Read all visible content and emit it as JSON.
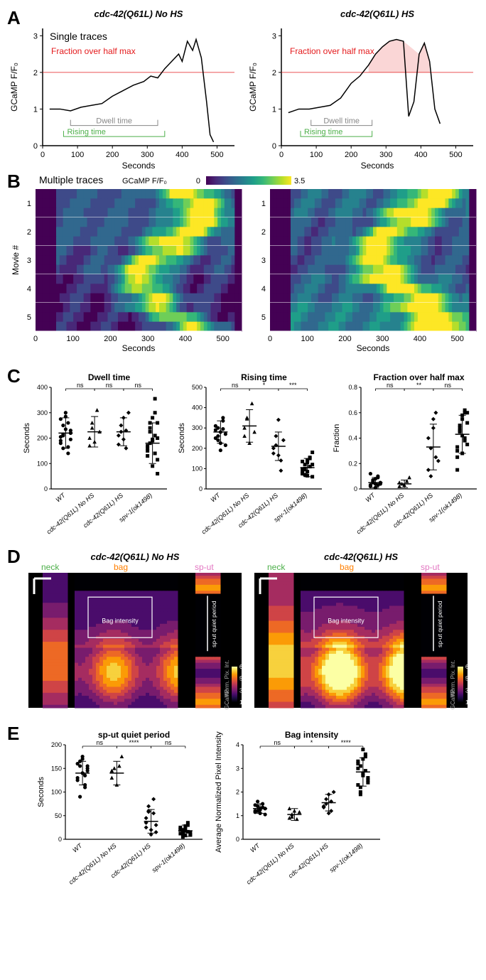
{
  "panelA": {
    "label": "A",
    "left_title": "cdc-42(Q61L) No HS",
    "right_title": "cdc-42(Q61L) HS",
    "subtitle": "Single traces",
    "ylabel": "GCaMP F/F₀",
    "xlabel": "Seconds",
    "yticks": [
      0,
      1,
      2,
      3
    ],
    "xticks_left": [
      0,
      100,
      200,
      300,
      400,
      500
    ],
    "xticks_right": [
      0,
      100,
      200,
      300,
      400,
      500
    ],
    "red_label": "Fraction over half max",
    "red_color": "#e41a1c",
    "gray_label": "Dwell time",
    "gray_color": "#888888",
    "green_label": "Rising time",
    "green_color": "#4daf4a",
    "half_max_y": 2.0,
    "left_trace": [
      [
        20,
        1.0
      ],
      [
        50,
        1.0
      ],
      [
        80,
        0.95
      ],
      [
        110,
        1.05
      ],
      [
        140,
        1.1
      ],
      [
        170,
        1.15
      ],
      [
        200,
        1.35
      ],
      [
        230,
        1.5
      ],
      [
        260,
        1.65
      ],
      [
        290,
        1.75
      ],
      [
        310,
        1.9
      ],
      [
        330,
        1.85
      ],
      [
        350,
        2.1
      ],
      [
        370,
        2.3
      ],
      [
        390,
        2.5
      ],
      [
        400,
        2.3
      ],
      [
        415,
        2.85
      ],
      [
        430,
        2.6
      ],
      [
        440,
        2.9
      ],
      [
        455,
        2.4
      ],
      [
        470,
        1.2
      ],
      [
        480,
        0.3
      ],
      [
        490,
        0.1
      ]
    ],
    "right_trace": [
      [
        20,
        0.9
      ],
      [
        50,
        1.0
      ],
      [
        80,
        1.0
      ],
      [
        110,
        1.05
      ],
      [
        140,
        1.1
      ],
      [
        170,
        1.3
      ],
      [
        200,
        1.7
      ],
      [
        225,
        1.9
      ],
      [
        250,
        2.2
      ],
      [
        270,
        2.5
      ],
      [
        290,
        2.7
      ],
      [
        310,
        2.85
      ],
      [
        330,
        2.9
      ],
      [
        350,
        2.85
      ],
      [
        365,
        0.8
      ],
      [
        380,
        1.2
      ],
      [
        395,
        2.5
      ],
      [
        410,
        2.8
      ],
      [
        425,
        2.3
      ],
      [
        440,
        1.0
      ],
      [
        455,
        0.6
      ]
    ],
    "left_dwell": [
      80,
      330
    ],
    "left_rise": [
      60,
      350
    ],
    "right_dwell": [
      85,
      260
    ],
    "right_rise": [
      55,
      260
    ],
    "right_fill_start": 250
  },
  "panelB": {
    "label": "B",
    "subtitle": "Multiple traces",
    "colorbar_label": "GCaMP  F/F₀",
    "colorbar_min": "0",
    "colorbar_max": "3.5",
    "ylabel": "Movie #",
    "xlabel": "Seconds",
    "yticks": [
      1,
      2,
      3,
      4,
      5
    ],
    "xticks_left": [
      0,
      100,
      200,
      300,
      400,
      500
    ],
    "xticks_right": [
      0,
      100,
      200,
      300,
      400,
      500
    ],
    "viridis": [
      "#440154",
      "#482878",
      "#3e4a89",
      "#31688e",
      "#26828e",
      "#1f9e89",
      "#35b779",
      "#6ece58",
      "#b5de2b",
      "#fde725"
    ]
  },
  "panelC": {
    "label": "C",
    "categories": [
      "WT",
      "cdc-42(Q61L) No HS",
      "cdc-42(Q61L) HS",
      "spv-1(ok1498)"
    ],
    "plots": [
      {
        "title": "Dwell time",
        "ylabel": "Seconds",
        "yticks": [
          0,
          100,
          200,
          300,
          400
        ],
        "ymax": 400,
        "sig": [
          "ns",
          "ns",
          "ns"
        ],
        "means": [
          220,
          225,
          225,
          180
        ],
        "sd": [
          60,
          60,
          55,
          80
        ],
        "points": [
          [
            180,
            210,
            235,
            260,
            195,
            275,
            160,
            300,
            140,
            220,
            205,
            250,
            285,
            165,
            230,
            190,
            215
          ],
          [
            200,
            240,
            185,
            310,
            225,
            170,
            260
          ],
          [
            175,
            225,
            280,
            160,
            300,
            210,
            250,
            195,
            230
          ],
          [
            130,
            260,
            90,
            355,
            200,
            150,
            180,
            280,
            210,
            60,
            170,
            240,
            190,
            300,
            115,
            160,
            225,
            195,
            140,
            260
          ]
        ]
      },
      {
        "title": "Rising time",
        "ylabel": "Seconds",
        "yticks": [
          0,
          100,
          200,
          300,
          400,
          500
        ],
        "ymax": 500,
        "sig": [
          "ns",
          "*",
          "***"
        ],
        "means": [
          280,
          310,
          210,
          105
        ],
        "sd": [
          55,
          80,
          70,
          45
        ],
        "points": [
          [
            250,
            300,
            280,
            335,
            215,
            290,
            260,
            190,
            350,
            270,
            310,
            240,
            225,
            295
          ],
          [
            300,
            350,
            225,
            420,
            280,
            260,
            345
          ],
          [
            175,
            215,
            340,
            140,
            240,
            200,
            260,
            165,
            90
          ],
          [
            80,
            120,
            65,
            150,
            180,
            95,
            70,
            130,
            110,
            60,
            135,
            100,
            85,
            155,
            120,
            75,
            95,
            140,
            110
          ]
        ]
      },
      {
        "title": "Fraction over half max",
        "ylabel": "Fraction",
        "yticks": [
          0.0,
          0.2,
          0.4,
          0.6,
          0.8
        ],
        "ymax": 0.8,
        "sig": [
          "ns",
          "**",
          "ns"
        ],
        "means": [
          0.05,
          0.04,
          0.33,
          0.43
        ],
        "sd": [
          0.04,
          0.03,
          0.18,
          0.15
        ],
        "points": [
          [
            0.02,
            0.05,
            0.08,
            0.03,
            0.04,
            0.12,
            0.06,
            0.01,
            0.1,
            0.05,
            0.03,
            0.07,
            0.04,
            0.09
          ],
          [
            0.02,
            0.04,
            0.03,
            0.06,
            0.09,
            0.05
          ],
          [
            0.15,
            0.32,
            0.48,
            0.6,
            0.22,
            0.4,
            0.1,
            0.55,
            0.25
          ],
          [
            0.3,
            0.45,
            0.55,
            0.38,
            0.6,
            0.25,
            0.5,
            0.42,
            0.62,
            0.35,
            0.15,
            0.48,
            0.58,
            0.4,
            0.52,
            0.33,
            0.46,
            0.28,
            0.6
          ]
        ]
      }
    ]
  },
  "panelD": {
    "label": "D",
    "left_title": "cdc-42(Q61L) No HS",
    "right_title": "cdc-42(Q61L) HS",
    "neck": "neck",
    "neck_color": "#4daf4a",
    "bag": "bag",
    "bag_color": "#ff7f00",
    "sput": "sp-ut",
    "sput_color": "#e377c2",
    "bag_intensity": "Bag intensity",
    "sput_quiet": "sp-ut quiet period",
    "colorbar_label1": "GCaMP",
    "colorbar_label2": "Norm. Pix. Int.",
    "colorbar_vals": [
      1,
      3,
      5,
      6
    ],
    "inferno": [
      "#000004",
      "#1b0c41",
      "#4a0c6b",
      "#781c6d",
      "#a52c60",
      "#cf4446",
      "#ed6925",
      "#fb9b06",
      "#f7d13d",
      "#fcffa4"
    ]
  },
  "panelE": {
    "label": "E",
    "categories": [
      "WT",
      "cdc-42(Q61L) No HS",
      "cdc-42(Q61L) HS",
      "spv-1(ok1498)"
    ],
    "plots": [
      {
        "title": "sp-ut quiet period",
        "ylabel": "Seconds",
        "yticks": [
          0,
          50,
          100,
          150,
          200
        ],
        "ymax": 200,
        "sig": [
          "ns",
          "****",
          "ns"
        ],
        "means": [
          140,
          140,
          38,
          18
        ],
        "sd": [
          25,
          25,
          25,
          12
        ],
        "points": [
          [
            125,
            155,
            170,
            110,
            145,
            160,
            90,
            175,
            135,
            150,
            130,
            165,
            140,
            115,
            155
          ],
          [
            130,
            150,
            115,
            155,
            175,
            145
          ],
          [
            35,
            58,
            20,
            85,
            15,
            45,
            70,
            10,
            55,
            30,
            25,
            60
          ],
          [
            12,
            20,
            8,
            35,
            15,
            25,
            5,
            18,
            30,
            10,
            22,
            14,
            28,
            16,
            9,
            20,
            12,
            25
          ]
        ]
      },
      {
        "title": "Bag intensity",
        "ylabel": "Average Normalized Pixel Intensity",
        "yticks": [
          0,
          1,
          2,
          3,
          4
        ],
        "ymax": 4,
        "sig": [
          "ns",
          "*",
          "****"
        ],
        "means": [
          1.3,
          1.05,
          1.55,
          2.85
        ],
        "sd": [
          0.2,
          0.25,
          0.35,
          0.6
        ],
        "points": [
          [
            1.2,
            1.4,
            1.1,
            1.5,
            1.3,
            1.15,
            1.6,
            1.25,
            1.35,
            1.05,
            1.45,
            1.2,
            1.3
          ],
          [
            0.9,
            1.05,
            1.2,
            0.85,
            1.15,
            1.3,
            0.95
          ],
          [
            1.4,
            1.7,
            1.9,
            1.2,
            2.0,
            1.35,
            1.5,
            1.1,
            1.6
          ],
          [
            2.3,
            3.1,
            2.7,
            3.5,
            2.4,
            3.3,
            2.0,
            3.8,
            2.9,
            2.6,
            3.2,
            1.9,
            2.8,
            3.6,
            2.5,
            3.0,
            2.2,
            3.4
          ]
        ]
      }
    ]
  }
}
